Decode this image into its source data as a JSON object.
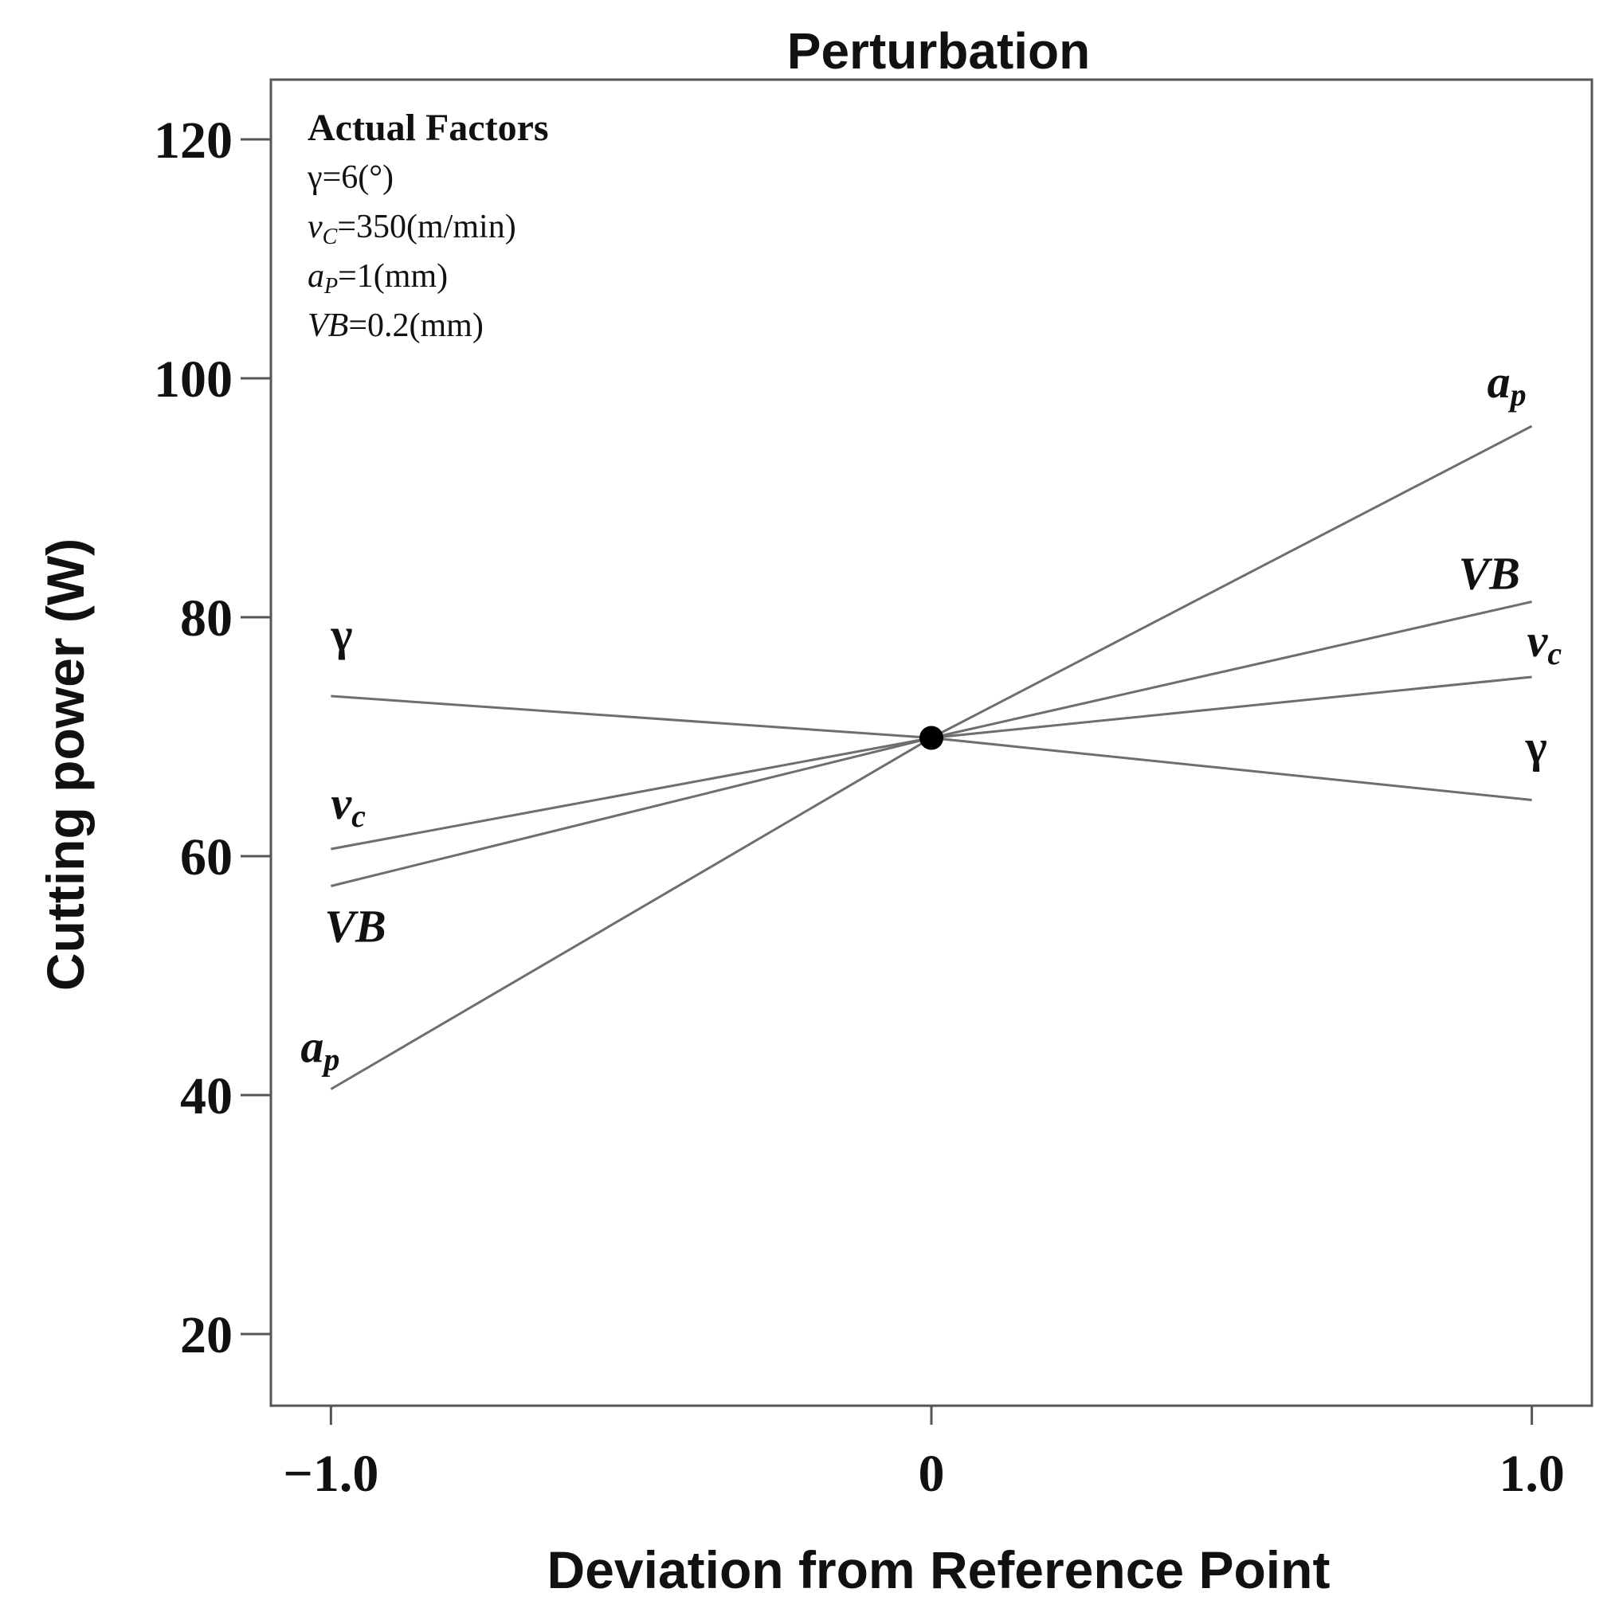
{
  "chart_data": {
    "type": "line",
    "title": "Perturbation",
    "xlabel": "Deviation from Reference Point",
    "ylabel": "Cutting power (W)",
    "xlim": [
      -1.1,
      1.1
    ],
    "ylim": [
      14,
      125
    ],
    "x_ticks": [
      -1.0,
      0,
      1.0
    ],
    "x_tick_labels": [
      "−1.0",
      "0",
      "1.0"
    ],
    "y_ticks": [
      20,
      40,
      60,
      80,
      100,
      120
    ],
    "y_tick_labels": [
      "20",
      "40",
      "60",
      "80",
      "100",
      "120"
    ],
    "grid": false,
    "reference_point": {
      "x": 0,
      "y": 69.9
    },
    "actual_factors": {
      "title": "Actual Factors",
      "lines": [
        {
          "symbol": "γ",
          "value": "=6(°)"
        },
        {
          "symbol": "v",
          "sub": "C",
          "value": "=350(m/min)"
        },
        {
          "symbol": "a",
          "sub": "P",
          "value": "=1(mm)"
        },
        {
          "symbol": "VB",
          "value": "=0.2(mm)"
        }
      ]
    },
    "series": [
      {
        "name": "γ",
        "x": [
          -1.0,
          0,
          1.0
        ],
        "values": [
          73.4,
          69.9,
          64.7
        ]
      },
      {
        "name": "v",
        "sub": "c",
        "x": [
          -1.0,
          0,
          1.0
        ],
        "values": [
          60.6,
          69.9,
          75.0
        ]
      },
      {
        "name": "VB",
        "x": [
          -1.0,
          0,
          1.0
        ],
        "values": [
          57.5,
          69.9,
          81.3
        ]
      },
      {
        "name": "a",
        "sub": "p",
        "x": [
          -1.0,
          0,
          1.0
        ],
        "values": [
          40.5,
          69.9,
          96.0
        ]
      }
    ],
    "colors": {
      "line": "#6e6e6e",
      "axis": "#555555",
      "marker": "#000000"
    }
  }
}
